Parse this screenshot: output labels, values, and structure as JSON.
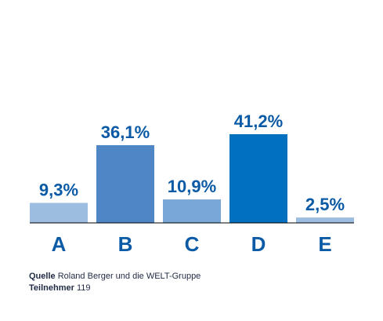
{
  "chart_data": {
    "type": "bar",
    "categories": [
      "A",
      "B",
      "C",
      "D",
      "E"
    ],
    "values": [
      9.3,
      36.1,
      10.9,
      41.2,
      2.5
    ],
    "value_labels": [
      "9,3%",
      "36,1%",
      "10,9%",
      "41,2%",
      "2,5%"
    ],
    "colors": [
      "#9dbde0",
      "#4f86c6",
      "#79a7d6",
      "#0070bf",
      "#9dbde0"
    ],
    "label_color": "#0b5aa6",
    "axis_color": "#000000",
    "ylim": [
      0,
      45
    ],
    "grid": false,
    "legend": "none"
  },
  "footer": {
    "source_label": "Quelle",
    "source_text": "Roland Berger und die WELT-Gruppe",
    "participants_label": "Teilnehmer",
    "participants_value": "119"
  }
}
